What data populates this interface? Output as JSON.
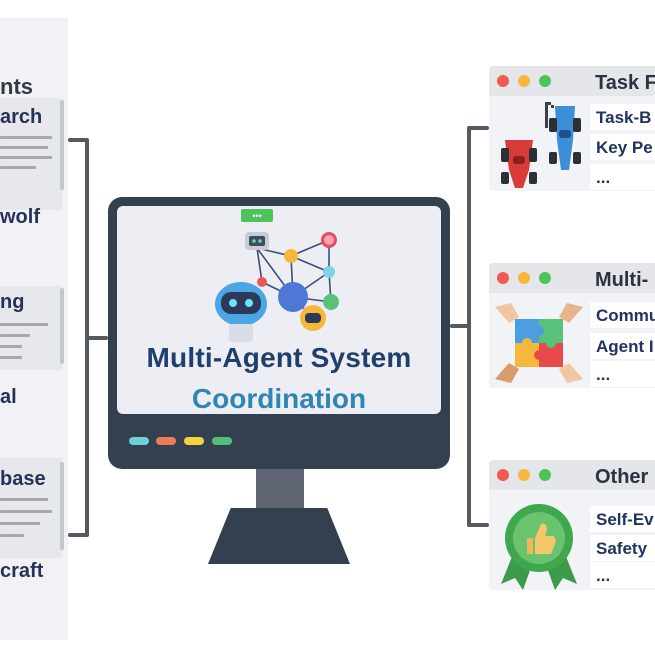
{
  "left_panel": {
    "heading": "nts",
    "items": [
      {
        "label": "arch"
      },
      {
        "label": "wolf"
      },
      {
        "label": "ng"
      },
      {
        "label": "al"
      },
      {
        "label": "base"
      },
      {
        "label": "craft"
      }
    ]
  },
  "center": {
    "title_line1": "Multi-Agent System",
    "title_line2": "Coordination",
    "bubble_text": "•••"
  },
  "cards": [
    {
      "title": "Task F",
      "items": [
        "Task-B",
        "Key Pe",
        "..."
      ],
      "icon": "race-cars-icon"
    },
    {
      "title": "Multi-",
      "items": [
        "Commu",
        "Agent I",
        "..."
      ],
      "icon": "puzzle-hands-icon"
    },
    {
      "title": "Other",
      "items": [
        "Self-Ev",
        "Safety",
        "..."
      ],
      "icon": "thumbs-up-badge-icon"
    }
  ],
  "colors": {
    "monitor": "#32404f",
    "title_dark": "#213f6d",
    "title_light": "#2f86b3",
    "dot_red": "#f05a50",
    "dot_yellow": "#f6b83c",
    "dot_green": "#4cc45a"
  }
}
